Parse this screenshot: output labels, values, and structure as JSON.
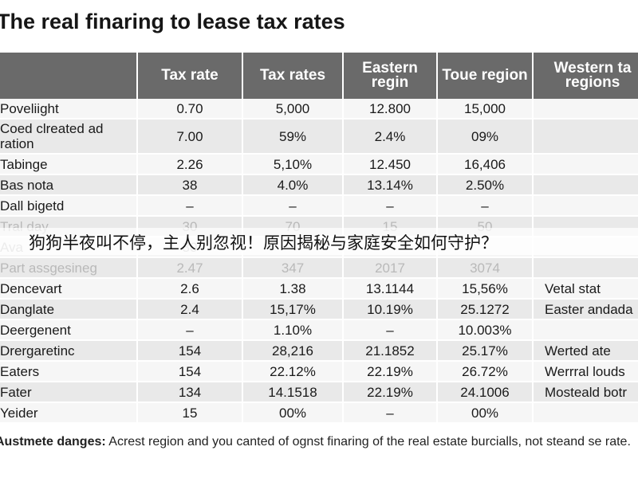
{
  "title": "The real finaring to lease tax rates",
  "table": {
    "headers": [
      "",
      "Tax rate",
      "Tax rates",
      "Eastern regin",
      "Toue region",
      "Western ta regions"
    ],
    "rows": [
      {
        "style": "plain",
        "cells": [
          "Poveliight",
          "0.70",
          "5,000",
          "12.800",
          "15,000",
          ""
        ]
      },
      {
        "style": "alt",
        "tall": true,
        "cells": [
          "Coed clreated ad ration",
          "7.00",
          "59%",
          "2.4%",
          "09%",
          ""
        ]
      },
      {
        "style": "plain",
        "cells": [
          "Tabinge",
          "2.26",
          "5,10%",
          "12.450",
          "16,406",
          ""
        ]
      },
      {
        "style": "alt",
        "cells": [
          "Bas nota",
          "38",
          "4.0%",
          "13.14%",
          "2.50%",
          ""
        ]
      },
      {
        "style": "plain",
        "cells": [
          "Dall bigetd",
          "–",
          "–",
          "–",
          "–",
          ""
        ]
      },
      {
        "style": "alt",
        "faded": true,
        "cells": [
          "Tral day",
          "30",
          "70",
          "15",
          "50",
          ""
        ]
      },
      {
        "style": "plain",
        "faded": true,
        "cells": [
          "Ava",
          "30",
          "",
          "",
          "",
          ""
        ]
      },
      {
        "style": "alt",
        "faded": true,
        "cells": [
          "Part assgesineg",
          "2.47",
          "347",
          "2017",
          "3074",
          ""
        ]
      },
      {
        "style": "plain",
        "cells": [
          "Dencevart",
          "2.6",
          "1.38",
          "13.1144",
          "15,56%",
          "Vetal stat"
        ]
      },
      {
        "style": "alt",
        "cells": [
          "Danglate",
          "2.4",
          "15,17%",
          "10.19%",
          "25.1272",
          "Easter andada"
        ]
      },
      {
        "style": "plain",
        "cells": [
          "Deergenent",
          "–",
          "1.10%",
          "–",
          "10.003%",
          ""
        ]
      },
      {
        "style": "alt",
        "cells": [
          "Drergaretinc",
          "154",
          "28,216",
          "21.1852",
          "25.17%",
          "Werted ate"
        ]
      },
      {
        "style": "plain",
        "cells": [
          "Eaters",
          "154",
          "22.12%",
          "22.19%",
          "26.72%",
          "Werrral louds"
        ]
      },
      {
        "style": "alt",
        "cells": [
          "Fater",
          "134",
          "14.1518",
          "22.19%",
          "24.1006",
          "Mosteald botr"
        ]
      },
      {
        "style": "plain",
        "cells": [
          "Yeider",
          "15",
          "00%",
          "–",
          "00%",
          ""
        ]
      }
    ]
  },
  "note": {
    "label": "Austmete danges:",
    "text": " Acrest region and you canted of ognst finaring of the real estate burcialls, not steand se rate."
  },
  "overlay_text": "狗狗半夜叫不停，主人别忽视！原因揭秘与家庭安全如何守护？"
}
